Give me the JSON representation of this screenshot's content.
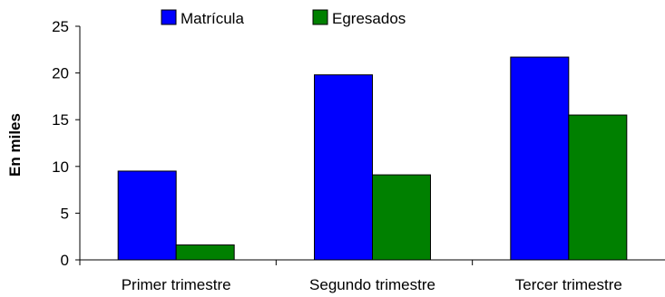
{
  "chart_data": {
    "type": "bar",
    "categories": [
      "Primer trimestre",
      "Segundo trimestre",
      "Tercer trimestre"
    ],
    "series": [
      {
        "name": "Matrícula",
        "color": "#0000ff",
        "values": [
          9.5,
          19.8,
          21.7
        ]
      },
      {
        "name": "Egresados",
        "color": "#008000",
        "values": [
          1.6,
          9.1,
          15.5
        ]
      }
    ],
    "ylabel": "En miles",
    "ylim": [
      0,
      25
    ],
    "yticks": [
      0,
      5,
      10,
      15,
      20,
      25
    ],
    "grid": false,
    "legend": "top"
  }
}
